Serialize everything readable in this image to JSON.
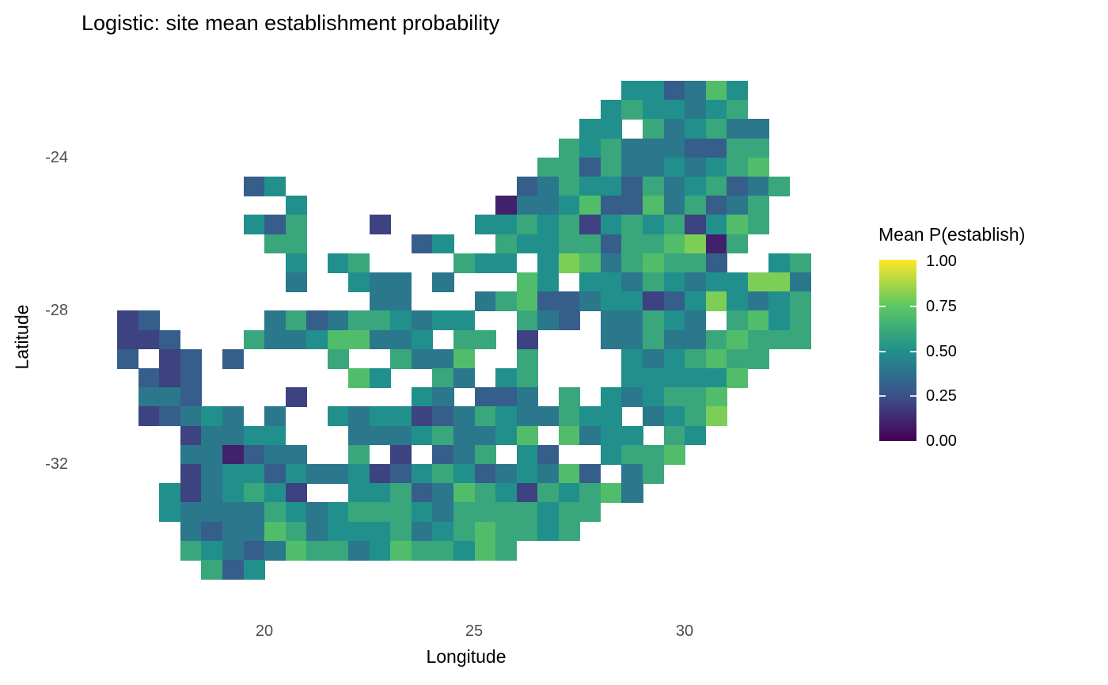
{
  "title": "Logistic: site mean establishment probability",
  "axes": {
    "x": {
      "label": "Longitude",
      "ticks": [
        "20",
        "25",
        "30"
      ]
    },
    "y": {
      "label": "Latitude",
      "ticks": [
        "-24",
        "-28",
        "-32"
      ]
    }
  },
  "legend": {
    "title": "Mean P(establish)",
    "tick_labels": [
      "1.00",
      "0.75",
      "0.50",
      "0.25",
      "0.00"
    ]
  },
  "chart_data": {
    "type": "heatmap",
    "title": "Logistic: site mean establishment probability",
    "xlabel": "Longitude",
    "ylabel": "Latitude",
    "legend_title": "Mean P(establish)",
    "value_range": [
      0,
      1
    ],
    "x_range": [
      16.5,
      33.5
    ],
    "y_range": [
      -35.0,
      -22.0
    ],
    "grid_on": false,
    "legend_position": "right",
    "colormap": "viridis",
    "colormap_stops": [
      [
        0.0,
        "#440154"
      ],
      [
        0.25,
        "#3B528B"
      ],
      [
        0.5,
        "#21908C"
      ],
      [
        0.75,
        "#5DC863"
      ],
      [
        1.0,
        "#FDE725"
      ]
    ],
    "grid": {
      "note": "Tile map of mean establishment probability per 0.5-degree cell. Rows run north to south: row r covers latitude -22-0.5r to -22.5-0.5r. Column k covers longitude 16.5+0.5k to 17+0.5k. Each character: '.' = no site, digit d = probability d/10.",
      "lon_start": 16.5,
      "lat_start": -22.0,
      "cell_deg": 0.5,
      "rows": [
        "........................553475....",
        ".......................5655456....",
        "......................55.645644...",
        ".....................6564443366...",
        "....................66364454567...",
        "......35...........3465536456346..",
        "........5.........1445733746346...",
        "......536...2....55656256562576...",
        ".......66.....35..655663667816....",
        "........5.56....655.587467663..56.",
        "........4..544.4...75.55465455884.",
        "............44...4673345523585456.",
        "23.....4634665455..643.44654.6756.",
        "223...644577445.66.2...4464467666.",
        "3.23.3....6..6447..6....5456766...",
        ".323.......75..64.56....555557....",
        ".443....2.....54.334.6.545667.....",
        ".23454.4..54552346544655.4568.....",
        "...24455...444564457.7455.65......",
        "...441344..6.2.346.53..5667.......",
        "...24553544523565345473.46........",
        "..5245652..55634765265674.........",
        "..544446545666546666566...........",
        "...4344764555645676656............",
        "...6543476645766576...............",
        "....635..........................."
      ]
    }
  }
}
